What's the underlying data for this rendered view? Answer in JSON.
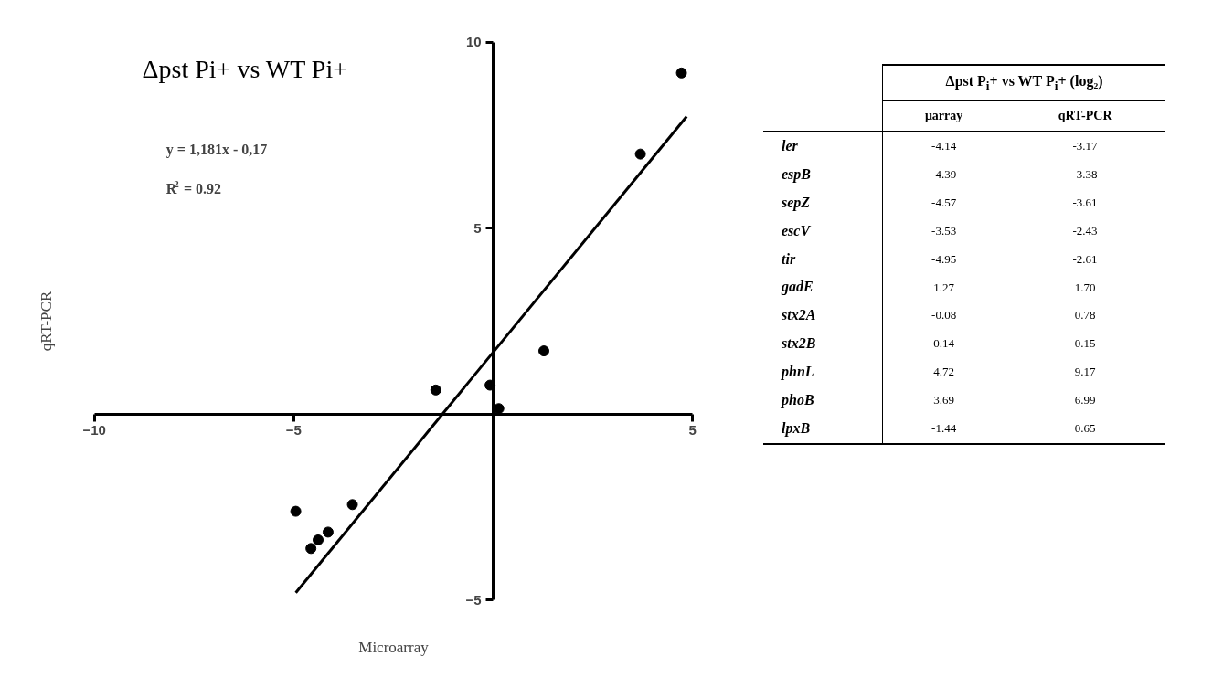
{
  "chart_data": [
    {
      "type": "scatter",
      "title": "Δpst Pi+ vs WT Pi+",
      "xlabel": "Microarray",
      "ylabel": "qRT-PCR",
      "annotations": [
        "y = 1,181x - 0,17",
        "R$^{2}$ = 0.92"
      ],
      "xlim": [
        -10,
        5
      ],
      "ylim": [
        -5,
        10
      ],
      "xticks": [
        -10,
        -5,
        5
      ],
      "yticks": [
        -5,
        5,
        10
      ],
      "grid": false,
      "series": [
        {
          "type": "scatter",
          "marker": "circle",
          "color": "#000000",
          "x": [
            -4.14,
            -4.39,
            -4.57,
            -3.53,
            -4.95,
            1.27,
            -0.08,
            0.14,
            4.72,
            3.69,
            -1.44
          ],
          "values": [
            -3.17,
            -3.38,
            -3.61,
            -2.43,
            -2.61,
            1.7,
            0.78,
            0.15,
            9.17,
            6.99,
            0.65
          ]
        },
        {
          "type": "line",
          "color": "#000000",
          "x": [
            -4.95,
            4.85
          ],
          "values": [
            -4.8,
            8.0
          ]
        }
      ]
    },
    {
      "type": "other",
      "title": "Δpst P$_{i}$+ vs WT P$_{i}$+ (log₂)",
      "categories": [
        "ler",
        "espB",
        "sepZ",
        "escV",
        "tir",
        "gadE",
        "stx2A",
        "stx2B",
        "phnL",
        "phoB",
        "lpxB"
      ],
      "series": [
        {
          "name": "μarray",
          "values": [
            -4.14,
            -4.39,
            -4.57,
            -3.53,
            -4.95,
            1.27,
            -0.08,
            0.14,
            4.72,
            3.69,
            -1.44
          ],
          "value_labels": [
            "-4.14",
            "-4.39",
            "-4.57",
            "-3.53",
            "-4.95",
            "1.27",
            "-0.08",
            "0.14",
            "4.72",
            "3.69",
            "-1.44"
          ]
        },
        {
          "name": "qRT-PCR",
          "values": [
            -3.17,
            -3.38,
            -3.61,
            -2.43,
            -2.61,
            1.7,
            0.78,
            0.15,
            9.17,
            6.99,
            0.65
          ],
          "value_labels": [
            "-3.17",
            "-3.38",
            "-3.61",
            "-2.43",
            "-2.61",
            "1.70",
            "0.78",
            "0.15",
            "9.17",
            "6.99",
            "0.65"
          ]
        }
      ]
    }
  ]
}
